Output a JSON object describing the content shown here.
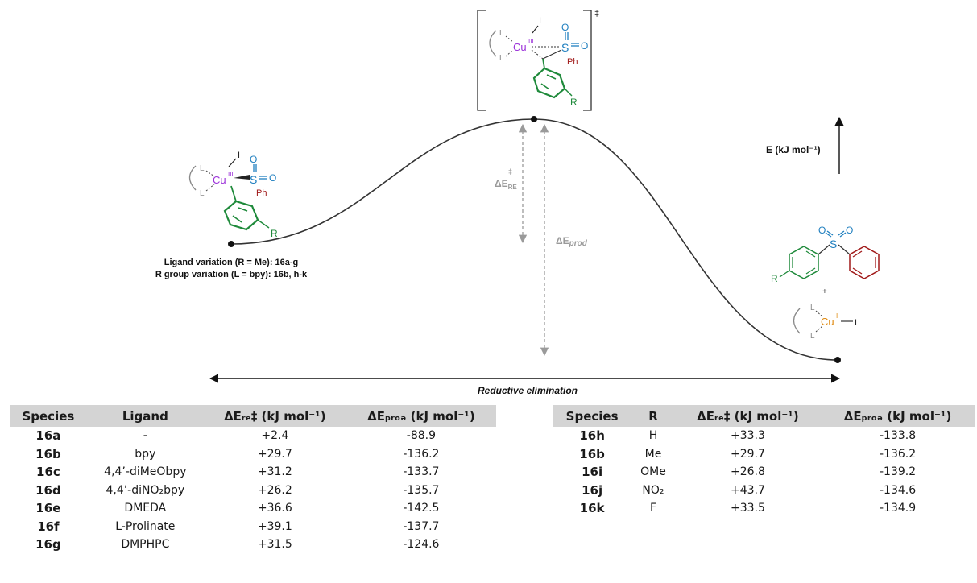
{
  "diagram": {
    "energy_axis": "E (kJ mol⁻¹)",
    "reaction_coordinate": "Reductive elimination",
    "variation_ligand": "Ligand variation (R = Me): 16a-g",
    "variation_r": "R group variation (L = bpy): 16b, h-k",
    "barrier_label": "ΔE",
    "barrier_sub": "RE",
    "barrier_sup": "‡",
    "product_energy_label": "ΔE",
    "product_energy_sub": "prod",
    "ts_dagger": "‡",
    "plus_sign": "+",
    "atoms": {
      "ligand": "L",
      "copper": "Cu",
      "cu_iii": "III",
      "cu_i": "I",
      "iodide": "I",
      "sulfur": "S",
      "oxygen": "O",
      "phenyl": "Ph",
      "r_group": "R"
    }
  },
  "ligand_table": {
    "headers": [
      "Species",
      "Ligand",
      "ΔEᵣₑ‡ (kJ mol⁻¹)",
      "ΔEₚᵣₒₔ (kJ mol⁻¹)"
    ],
    "rows": [
      {
        "species": "16a",
        "ligand": "-",
        "de_re": "+2.4",
        "de_prod": "-88.9"
      },
      {
        "species": "16b",
        "ligand": "bpy",
        "de_re": "+29.7",
        "de_prod": "-136.2"
      },
      {
        "species": "16c",
        "ligand": "4,4’-diMeObpy",
        "de_re": "+31.2",
        "de_prod": "-133.7"
      },
      {
        "species": "16d",
        "ligand": "4,4’-diNO₂bpy",
        "de_re": "+26.2",
        "de_prod": "-135.7"
      },
      {
        "species": "16e",
        "ligand": "DMEDA",
        "de_re": "+36.6",
        "de_prod": "-142.5"
      },
      {
        "species": "16f",
        "ligand": "L-Prolinate",
        "de_re": "+39.1",
        "de_prod": "-137.7"
      },
      {
        "species": "16g",
        "ligand": "DMPHPC",
        "de_re": "+31.5",
        "de_prod": "-124.6"
      }
    ]
  },
  "r_table": {
    "headers": [
      "Species",
      "R",
      "ΔEᵣₑ‡ (kJ mol⁻¹)",
      "ΔEₚᵣₒₔ (kJ mol⁻¹)"
    ],
    "rows": [
      {
        "species": "16h",
        "r": "H",
        "de_re": "+33.3",
        "de_prod": "-133.8"
      },
      {
        "species": "16b",
        "r": "Me",
        "de_re": "+29.7",
        "de_prod": "-136.2"
      },
      {
        "species": "16i",
        "r": "OMe",
        "de_re": "+26.8",
        "de_prod": "-139.2"
      },
      {
        "species": "16j",
        "r": "NO₂",
        "de_re": "+43.7",
        "de_prod": "-134.6"
      },
      {
        "species": "16k",
        "r": "F",
        "de_re": "+33.5",
        "de_prod": "-134.9"
      }
    ]
  },
  "colors": {
    "copper": "#9b30d9",
    "copper_i": "#e08a10",
    "sulfonyl": "#1f7fbf",
    "phenyl_sulfonyl": "#a01818",
    "aryl": "#1f8a3b",
    "ligand": "#888888",
    "curve": "#333333",
    "arrows": "#9a9a9a"
  }
}
